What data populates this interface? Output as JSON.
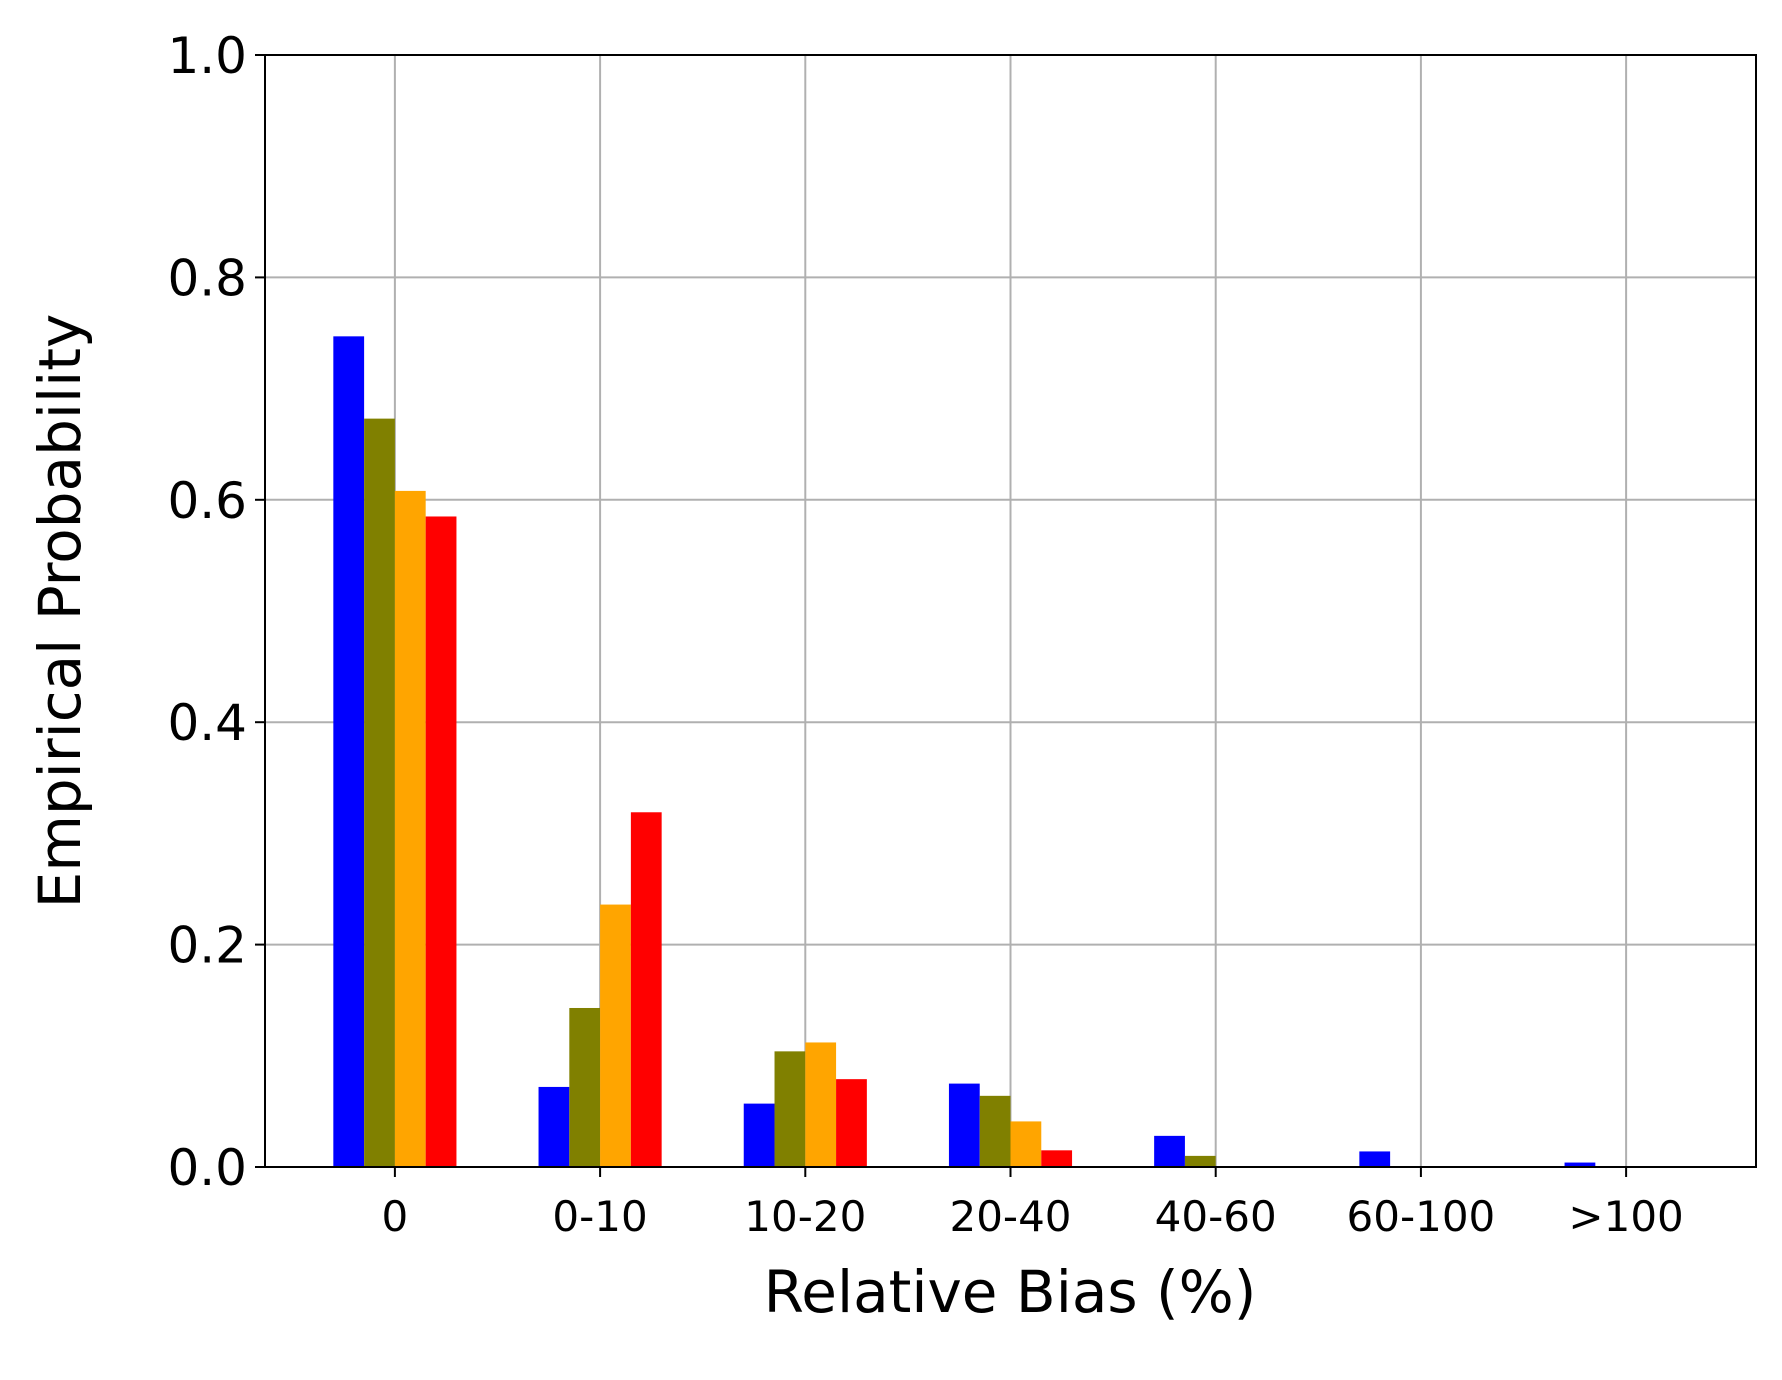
{
  "chart_data": {
    "type": "bar",
    "xlabel": "Relative Bias (%)",
    "ylabel": "Empirical Probability",
    "categories": [
      "0",
      "0-10",
      "10-20",
      "20-40",
      "40-60",
      "60-100",
      ">100"
    ],
    "series": [
      {
        "color": "#0000ff",
        "values": [
          0.747,
          0.072,
          0.057,
          0.075,
          0.028,
          0.014,
          0.004
        ]
      },
      {
        "color": "#808000",
        "values": [
          0.673,
          0.143,
          0.104,
          0.064,
          0.01,
          0,
          0
        ]
      },
      {
        "color": "#ffa500",
        "values": [
          0.608,
          0.236,
          0.112,
          0.041,
          0,
          0,
          0
        ]
      },
      {
        "color": "#ff0000",
        "values": [
          0.585,
          0.319,
          0.079,
          0.015,
          0,
          0,
          0
        ]
      }
    ],
    "ylim": [
      0,
      1.0
    ],
    "yticks": [
      {
        "value": 0,
        "label": "0.0"
      },
      {
        "value": 0.2,
        "label": "0.2"
      },
      {
        "value": 0.4,
        "label": "0.4"
      },
      {
        "value": 0.6,
        "label": "0.6"
      },
      {
        "value": 0.8,
        "label": "0.8"
      },
      {
        "value": 1.0,
        "label": "1.0"
      }
    ],
    "grid": true
  }
}
